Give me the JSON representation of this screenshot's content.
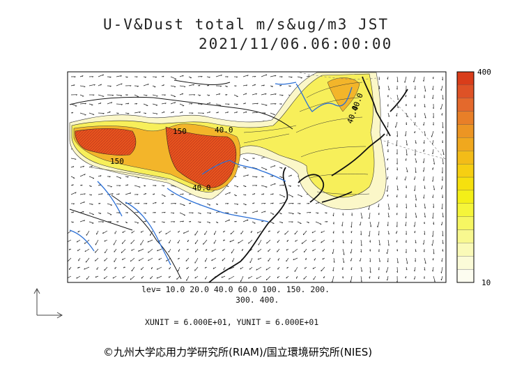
{
  "title": {
    "line1": "U-V&Dust total m/s&ug/m3 JST",
    "line2": "2021/11/06.06:00:00"
  },
  "colorbar": {
    "max_label": "400",
    "min_label": "10",
    "colors": [
      "#fdfdf0",
      "#fbfbd8",
      "#fafab8",
      "#f8f88f",
      "#f6f662",
      "#f5f53a",
      "#f4ef18",
      "#f6e00e",
      "#f6cf12",
      "#f3bc18",
      "#f0a81e",
      "#ec9523",
      "#e87f28",
      "#e4692c",
      "#de5226",
      "#d93d1a"
    ]
  },
  "contour_labels": [
    "150",
    "40.0",
    "150",
    "40.0",
    "40.0",
    "40.0"
  ],
  "legend": {
    "lev_line1": "lev= 10.0 20.0 40.0 60.0 100. 150. 200.",
    "lev_line2": "300. 400.",
    "unit_line": "XUNIT = 6.000E+01, YUNIT = 6.000E+01"
  },
  "credit": "©九州大学応用力学研究所(RIAM)/国立環境研究所(NIES)",
  "colors": {
    "dust_high": "#e8541e",
    "dust_mid": "#f3b52a",
    "dust_low": "#f7ef5a",
    "dust_faint": "#fbf7c8",
    "rivers": "#2a6fd6",
    "coast": "#111111"
  }
}
